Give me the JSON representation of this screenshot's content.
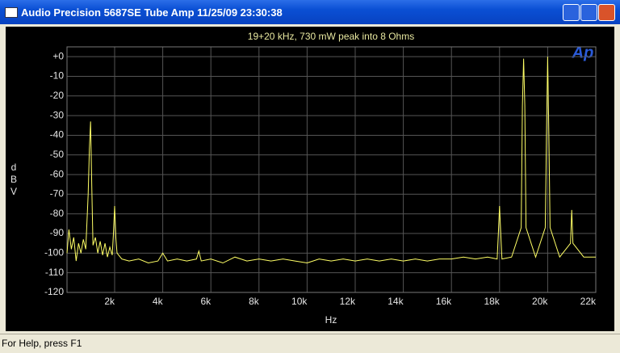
{
  "window": {
    "title": "Audio Precision  5687SE Tube Amp  11/25/09 23:30:38"
  },
  "status_bar": "For Help, press F1",
  "chart_data": {
    "type": "line",
    "title": "19+20 kHz, 730 mW peak into 8 Ohms",
    "logo": "Ap",
    "x_label": "Hz",
    "y_label": "dBV",
    "color": "#ffff66",
    "grid": true,
    "xlim": [
      20,
      22000
    ],
    "ylim": [
      -120,
      5
    ],
    "xticks": [
      {
        "value": 2000,
        "label": "2k"
      },
      {
        "value": 4000,
        "label": "4k"
      },
      {
        "value": 6000,
        "label": "6k"
      },
      {
        "value": 8000,
        "label": "8k"
      },
      {
        "value": 10000,
        "label": "10k"
      },
      {
        "value": 12000,
        "label": "12k"
      },
      {
        "value": 14000,
        "label": "14k"
      },
      {
        "value": 16000,
        "label": "16k"
      },
      {
        "value": 18000,
        "label": "18k"
      },
      {
        "value": 20000,
        "label": "20k"
      },
      {
        "value": 22000,
        "label": "22k"
      }
    ],
    "yticks": [
      {
        "value": 0,
        "label": "+0"
      },
      -10,
      -20,
      -30,
      -40,
      -50,
      -60,
      -70,
      -80,
      -90,
      -100,
      -110,
      -120
    ],
    "x": [
      20,
      100,
      200,
      300,
      400,
      500,
      600,
      700,
      800,
      900,
      950,
      1000,
      1050,
      1100,
      1200,
      1300,
      1400,
      1500,
      1600,
      1700,
      1800,
      1900,
      1950,
      2000,
      2050,
      2100,
      2300,
      2600,
      3000,
      3400,
      3800,
      4000,
      4200,
      4600,
      5000,
      5400,
      5500,
      5600,
      6000,
      6500,
      7000,
      7500,
      8000,
      8500,
      9000,
      9500,
      10000,
      10500,
      11000,
      11500,
      12000,
      12500,
      13000,
      13500,
      14000,
      14500,
      15000,
      15500,
      16000,
      16500,
      17000,
      17500,
      17900,
      17950,
      18000,
      18050,
      18100,
      18500,
      18900,
      18950,
      19000,
      19050,
      19100,
      19500,
      19900,
      19950,
      20000,
      20050,
      20100,
      20500,
      20950,
      21000,
      21050,
      21500,
      22000
    ],
    "values": [
      -100,
      -88,
      -98,
      -92,
      -104,
      -95,
      -100,
      -93,
      -98,
      -70,
      -47,
      -33,
      -66,
      -96,
      -92,
      -100,
      -94,
      -101,
      -95,
      -102,
      -97,
      -101,
      -90,
      -76,
      -92,
      -100,
      -103,
      -104,
      -103,
      -105,
      -104,
      -100,
      -104,
      -103,
      -104,
      -103,
      -99,
      -104,
      -103,
      -105,
      -102,
      -104,
      -103,
      -104,
      -103,
      -104,
      -105,
      -103,
      -104,
      -103,
      -104,
      -103,
      -104,
      -103,
      -104,
      -103,
      -104,
      -103,
      -103,
      -102,
      -103,
      -102,
      -103,
      -90,
      -76,
      -90,
      -103,
      -102,
      -87,
      -25,
      -1,
      -25,
      -87,
      -102,
      -87,
      -40,
      0,
      -40,
      -87,
      -102,
      -95,
      -78,
      -95,
      -102,
      -102
    ]
  }
}
